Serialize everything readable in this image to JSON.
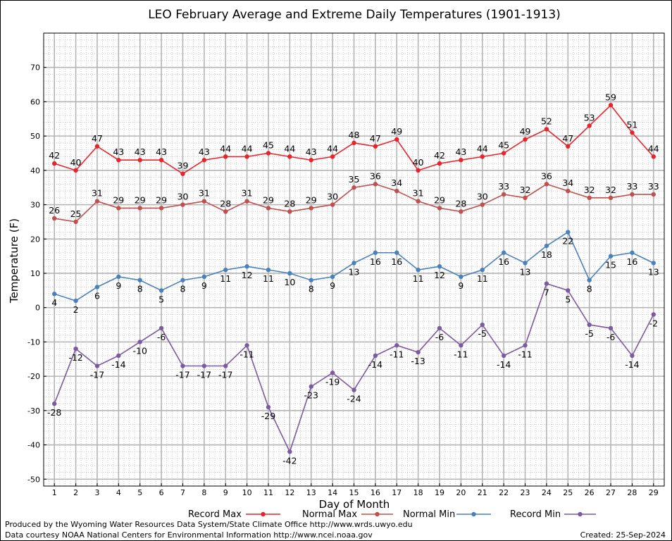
{
  "chart_data": {
    "type": "line",
    "title": "LEO February Average and Extreme Daily Temperatures (1901-1913)",
    "xlabel": "Day of Month",
    "ylabel": "Temperature (F)",
    "xlim": [
      0.5,
      29.5
    ],
    "ylim": [
      -52,
      80
    ],
    "yticks": [
      -50,
      -40,
      -30,
      -20,
      -10,
      0,
      10,
      20,
      30,
      40,
      50,
      60,
      70
    ],
    "x": [
      1,
      2,
      3,
      4,
      5,
      6,
      7,
      8,
      9,
      10,
      11,
      12,
      13,
      14,
      15,
      16,
      17,
      18,
      19,
      20,
      21,
      22,
      23,
      24,
      25,
      26,
      27,
      28,
      29
    ],
    "grid": true,
    "legend_position": "bottom",
    "series": [
      {
        "name": "Record Max",
        "color": "#e8232a",
        "label_pos": "above",
        "values": [
          42,
          40,
          47,
          43,
          43,
          43,
          39,
          43,
          44,
          44,
          45,
          44,
          43,
          44,
          48,
          47,
          49,
          40,
          42,
          43,
          44,
          45,
          49,
          52,
          47,
          53,
          59,
          51,
          44
        ]
      },
      {
        "name": "Normal Max",
        "color": "#c0504d",
        "label_pos": "above",
        "values": [
          26,
          25,
          31,
          29,
          29,
          29,
          30,
          31,
          28,
          31,
          29,
          28,
          29,
          30,
          35,
          36,
          34,
          31,
          29,
          28,
          30,
          33,
          32,
          36,
          34,
          32,
          32,
          33,
          33
        ]
      },
      {
        "name": "Normal Min",
        "color": "#4a81bd",
        "label_pos": "below",
        "values": [
          4,
          2,
          6,
          9,
          8,
          5,
          8,
          9,
          11,
          12,
          11,
          10,
          8,
          9,
          13,
          16,
          16,
          11,
          12,
          9,
          11,
          16,
          13,
          18,
          22,
          8,
          15,
          16,
          13
        ]
      },
      {
        "name": "Record Min",
        "color": "#7c5a9f",
        "label_pos": "below",
        "values": [
          -28,
          -12,
          -17,
          -14,
          -10,
          -6,
          -17,
          -17,
          -17,
          -11,
          -29,
          -42,
          -23,
          -19,
          -24,
          -14,
          -11,
          -13,
          -6,
          -11,
          -5,
          -14,
          -11,
          7,
          5,
          -5,
          -6,
          -14,
          -2
        ]
      }
    ]
  },
  "footer": {
    "produced_by": "Produced by the Wyoming Water Resources Data System/State Climate Office http://www.wrds.uwyo.edu",
    "courtesy": "Data courtesy NOAA National Centers for Environmental Information http://www.ncei.noaa.gov",
    "created": "Created:  25-Sep-2024"
  }
}
